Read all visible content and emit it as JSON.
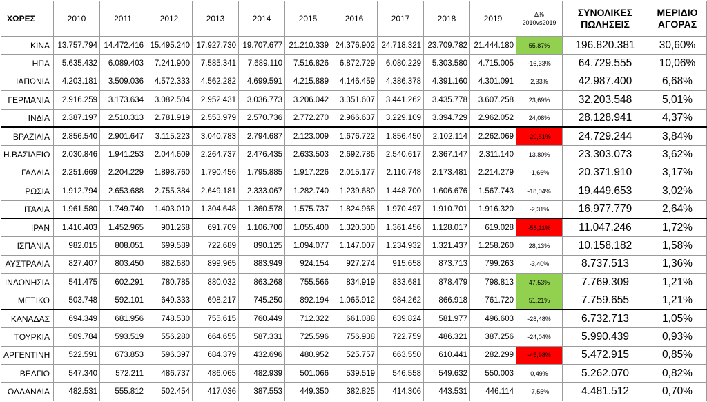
{
  "headers": {
    "country": "ΧΩΡΕΣ",
    "years": [
      "2010",
      "2011",
      "2012",
      "2013",
      "2014",
      "2015",
      "2016",
      "2017",
      "2018",
      "2019"
    ],
    "change_line1": "Δ%",
    "change_line2": "2010vs2019",
    "total_line1": "ΣΥΝΟΛΙΚΕΣ",
    "total_line2": "ΠΩΛΗΣΕΙΣ",
    "share_line1": "ΜΕΡΙΔΙΟ",
    "share_line2": "ΑΓΟΡΑΣ"
  },
  "colors": {
    "positive_highlight": "#92d050",
    "negative_highlight": "#ff0000",
    "grid": "#9a9a9a"
  },
  "rows": [
    {
      "country": "ΚΙΝΑ",
      "y": [
        "13.757.794",
        "14.472.416",
        "15.495.240",
        "17.927.730",
        "19.707.677",
        "21.210.339",
        "24.376.902",
        "24.718.321",
        "23.709.782",
        "21.444.180"
      ],
      "change": "55,87%",
      "highlight": "pos",
      "total": "196.820.381",
      "share": "30,60%"
    },
    {
      "country": "ΗΠΑ",
      "y": [
        "5.635.432",
        "6.089.403",
        "7.241.900",
        "7.585.341",
        "7.689.110",
        "7.516.826",
        "6.872.729",
        "6.080.229",
        "5.303.580",
        "4.715.005"
      ],
      "change": "-16,33%",
      "highlight": "",
      "total": "64.729.555",
      "share": "10,06%"
    },
    {
      "country": "ΙΑΠΩΝΙΑ",
      "y": [
        "4.203.181",
        "3.509.036",
        "4.572.333",
        "4.562.282",
        "4.699.591",
        "4.215.889",
        "4.146.459",
        "4.386.378",
        "4.391.160",
        "4.301.091"
      ],
      "change": "2,33%",
      "highlight": "",
      "total": "42.987.400",
      "share": "6,68%"
    },
    {
      "country": "ΓΕΡΜΑΝΙΑ",
      "y": [
        "2.916.259",
        "3.173.634",
        "3.082.504",
        "2.952.431",
        "3.036.773",
        "3.206.042",
        "3.351.607",
        "3.441.262",
        "3.435.778",
        "3.607.258"
      ],
      "change": "23,69%",
      "highlight": "",
      "total": "32.203.548",
      "share": "5,01%"
    },
    {
      "country": "ΙΝΔΙΑ",
      "y": [
        "2.387.197",
        "2.510.313",
        "2.781.919",
        "2.553.979",
        "2.570.736",
        "2.772.270",
        "2.966.637",
        "3.229.109",
        "3.394.729",
        "2.962.052"
      ],
      "change": "24,08%",
      "highlight": "",
      "total": "28.128.941",
      "share": "4,37%",
      "sep": true
    },
    {
      "country": "ΒΡΑΖΙΛΙΑ",
      "y": [
        "2.856.540",
        "2.901.647",
        "3.115.223",
        "3.040.783",
        "2.794.687",
        "2.123.009",
        "1.676.722",
        "1.856.450",
        "2.102.114",
        "2.262.069"
      ],
      "change": "-20,81%",
      "highlight": "neg",
      "total": "24.729.244",
      "share": "3,84%"
    },
    {
      "country": "Η.ΒΑΣΙΛΕΙΟ",
      "y": [
        "2.030.846",
        "1.941.253",
        "2.044.609",
        "2.264.737",
        "2.476.435",
        "2.633.503",
        "2.692.786",
        "2.540.617",
        "2.367.147",
        "2.311.140"
      ],
      "change": "13,80%",
      "highlight": "",
      "total": "23.303.073",
      "share": "3,62%"
    },
    {
      "country": "ΓΑΛΛΙΑ",
      "y": [
        "2.251.669",
        "2.204.229",
        "1.898.760",
        "1.790.456",
        "1.795.885",
        "1.917.226",
        "2.015.177",
        "2.110.748",
        "2.173.481",
        "2.214.279"
      ],
      "change": "-1,66%",
      "highlight": "",
      "total": "20.371.910",
      "share": "3,17%"
    },
    {
      "country": "ΡΩΣΙΑ",
      "y": [
        "1.912.794",
        "2.653.688",
        "2.755.384",
        "2.649.181",
        "2.333.067",
        "1.282.740",
        "1.239.680",
        "1.448.700",
        "1.606.676",
        "1.567.743"
      ],
      "change": "-18,04%",
      "highlight": "",
      "total": "19.449.653",
      "share": "3,02%"
    },
    {
      "country": "ΙΤΑΛΙΑ",
      "y": [
        "1.961.580",
        "1.749.740",
        "1.403.010",
        "1.304.648",
        "1.360.578",
        "1.575.737",
        "1.824.968",
        "1.970.497",
        "1.910.701",
        "1.916.320"
      ],
      "change": "-2,31%",
      "highlight": "",
      "total": "16.977.779",
      "share": "2,64%",
      "sep": true
    },
    {
      "country": "ΙΡΑΝ",
      "y": [
        "1.410.403",
        "1.452.965",
        "901.268",
        "691.709",
        "1.106.700",
        "1.055.400",
        "1.320.300",
        "1.361.456",
        "1.128.017",
        "619.028"
      ],
      "change": "-56,11%",
      "highlight": "neg",
      "total": "11.047.246",
      "share": "1,72%"
    },
    {
      "country": "ΙΣΠΑΝΙΑ",
      "y": [
        "982.015",
        "808.051",
        "699.589",
        "722.689",
        "890.125",
        "1.094.077",
        "1.147.007",
        "1.234.932",
        "1.321.437",
        "1.258.260"
      ],
      "change": "28,13%",
      "highlight": "",
      "total": "10.158.182",
      "share": "1,58%"
    },
    {
      "country": "ΑΥΣΤΡΑΛΙΑ",
      "y": [
        "827.407",
        "803.450",
        "882.680",
        "899.965",
        "883.949",
        "924.154",
        "927.274",
        "915.658",
        "873.713",
        "799.263"
      ],
      "change": "-3,40%",
      "highlight": "",
      "total": "8.737.513",
      "share": "1,36%"
    },
    {
      "country": "ΙΝΔΟΝΗΣΙΑ",
      "y": [
        "541.475",
        "602.291",
        "780.785",
        "880.032",
        "863.268",
        "755.566",
        "834.919",
        "833.681",
        "878.479",
        "798.813"
      ],
      "change": "47,53%",
      "highlight": "pos",
      "total": "7.769.309",
      "share": "1,21%"
    },
    {
      "country": "ΜΕΞΙΚΟ",
      "y": [
        "503.748",
        "592.101",
        "649.333",
        "698.217",
        "745.250",
        "892.194",
        "1.065.912",
        "984.262",
        "866.918",
        "761.720"
      ],
      "change": "51,21%",
      "highlight": "pos",
      "total": "7.759.655",
      "share": "1,21%",
      "sep": true
    },
    {
      "country": "ΚΑΝΑΔΑΣ",
      "y": [
        "694.349",
        "681.956",
        "748.530",
        "755.615",
        "760.449",
        "712.322",
        "661.088",
        "639.824",
        "581.977",
        "496.603"
      ],
      "change": "-28,48%",
      "highlight": "",
      "total": "6.732.713",
      "share": "1,05%"
    },
    {
      "country": "ΤΟΥΡΚΙΑ",
      "y": [
        "509.784",
        "593.519",
        "556.280",
        "664.655",
        "587.331",
        "725.596",
        "756.938",
        "722.759",
        "486.321",
        "387.256"
      ],
      "change": "-24,04%",
      "highlight": "",
      "total": "5.990.439",
      "share": "0,93%"
    },
    {
      "country": "ΑΡΓΕΝΤΙΝΗ",
      "y": [
        "522.591",
        "673.853",
        "596.397",
        "684.379",
        "432.696",
        "480.952",
        "525.757",
        "663.550",
        "610.441",
        "282.299"
      ],
      "change": "-45,98%",
      "highlight": "neg",
      "total": "5.472.915",
      "share": "0,85%"
    },
    {
      "country": "ΒΕΛΓΙΟ",
      "y": [
        "547.340",
        "572.211",
        "486.737",
        "486.065",
        "482.939",
        "501.066",
        "539.519",
        "546.558",
        "549.632",
        "550.003"
      ],
      "change": "0,49%",
      "highlight": "",
      "total": "5.262.070",
      "share": "0,82%"
    },
    {
      "country": "ΟΛΛΑΝΔΙΑ",
      "y": [
        "482.531",
        "555.812",
        "502.454",
        "417.036",
        "387.553",
        "449.350",
        "382.825",
        "414.306",
        "443.531",
        "446.114"
      ],
      "change": "-7,55%",
      "highlight": "",
      "total": "4.481.512",
      "share": "0,70%"
    }
  ]
}
